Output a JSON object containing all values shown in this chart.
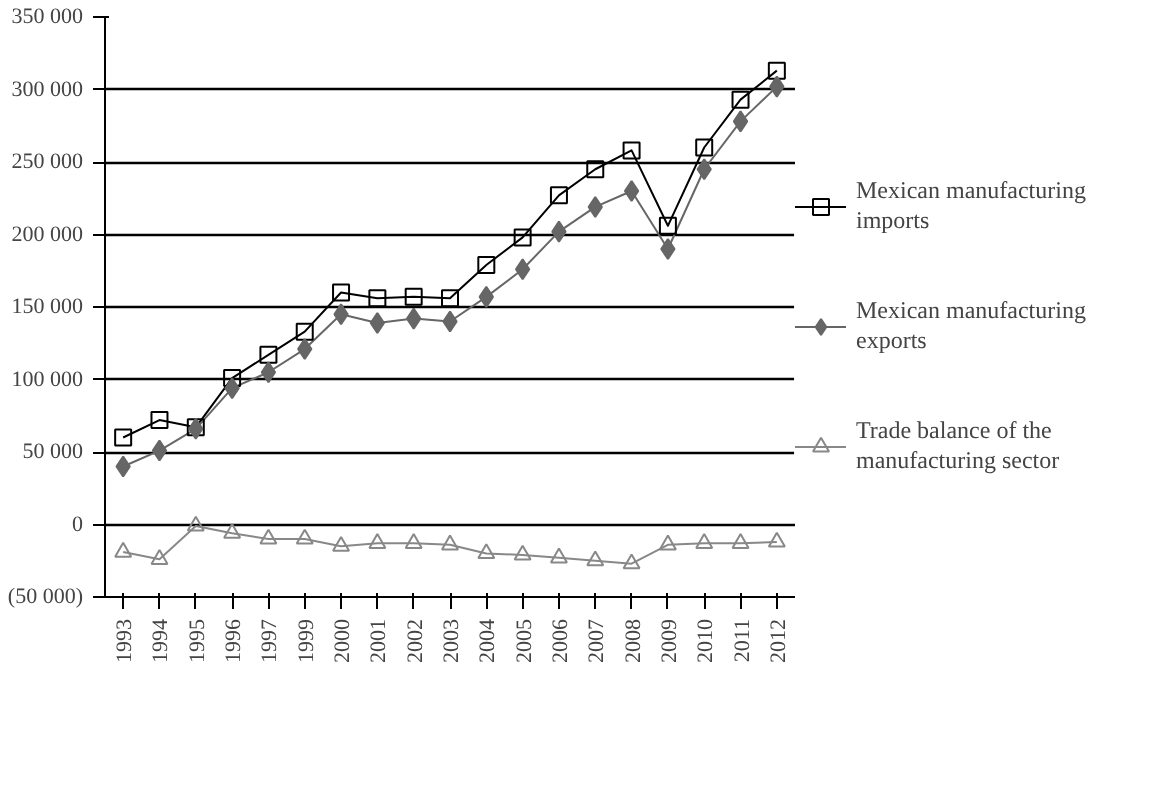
{
  "chart_data": {
    "type": "line",
    "categories": [
      "1993",
      "1994",
      "1995",
      "1996",
      "1997",
      "1999",
      "2000",
      "2001",
      "2002",
      "2003",
      "2004",
      "2005",
      "2006",
      "2007",
      "2008",
      "2009",
      "2010",
      "2011",
      "2012"
    ],
    "series": [
      {
        "name": "Mexican manufacturing imports",
        "color": "#000000",
        "marker": "square",
        "values": [
          60000,
          72000,
          67000,
          101000,
          117000,
          133000,
          160000,
          156000,
          157000,
          156000,
          179000,
          198000,
          227000,
          245000,
          258000,
          206000,
          260000,
          293000,
          313000
        ]
      },
      {
        "name": "Mexican manufacturing exports",
        "color": "#666666",
        "marker": "diamond",
        "values": [
          40000,
          51000,
          66000,
          94000,
          105000,
          121000,
          145000,
          139000,
          142000,
          140000,
          157000,
          176000,
          202000,
          219000,
          230000,
          190000,
          245000,
          278000,
          302000
        ]
      },
      {
        "name": "Trade balance of the manufacturing sector",
        "color": "#888888",
        "marker": "triangle",
        "values": [
          -19000,
          -24000,
          -1000,
          -6000,
          -10000,
          -10000,
          -15000,
          -13000,
          -13000,
          -14000,
          -20000,
          -21000,
          -23000,
          -25000,
          -27000,
          -14000,
          -13000,
          -13000,
          -12000
        ]
      }
    ],
    "ylim": [
      -50000,
      350000
    ],
    "yticks": [
      {
        "value": -50000,
        "label": "(50 000)"
      },
      0,
      {
        "value": 50000,
        "label": "50 000"
      },
      {
        "value": 100000,
        "label": "100 000"
      },
      {
        "value": 150000,
        "label": "150 000"
      },
      {
        "value": 200000,
        "label": "200 000"
      },
      {
        "value": 250000,
        "label": "250 000"
      },
      {
        "value": 300000,
        "label": "300 000"
      },
      {
        "value": 350000,
        "label": "350 000"
      }
    ],
    "grid": "y",
    "legend": "right",
    "line_style": "solid"
  }
}
